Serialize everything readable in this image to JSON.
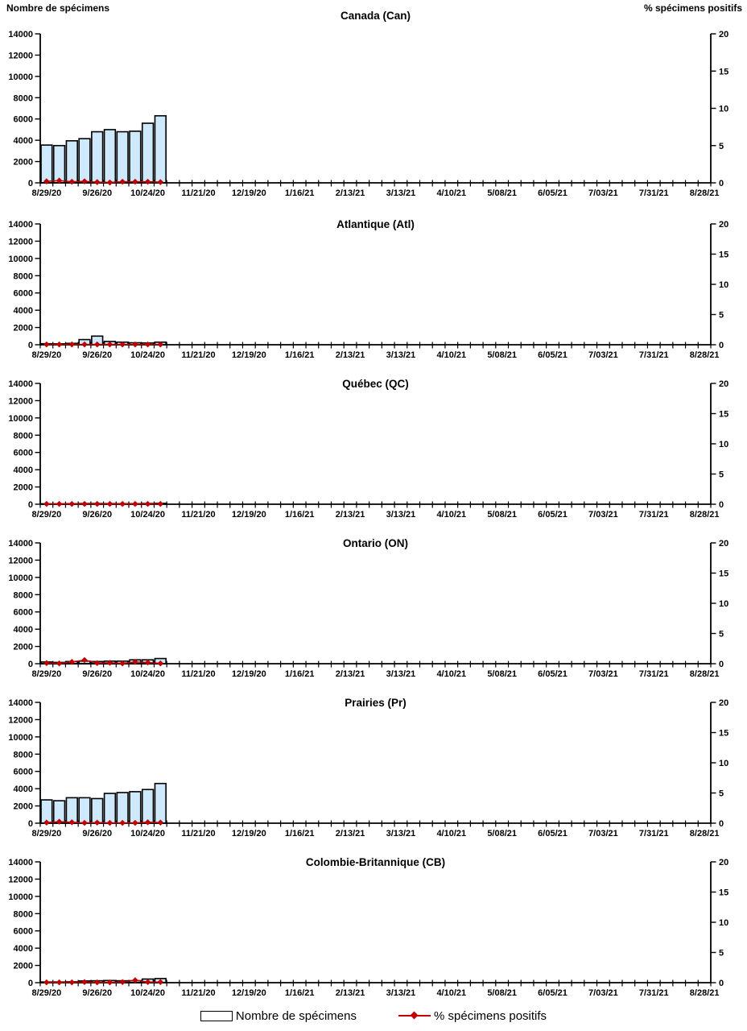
{
  "page": {
    "y_axis_title_left": "Nombre de spécimens",
    "y_axis_title_right": "% spécimens positifs"
  },
  "colors": {
    "bar_fill": "#cde9fb",
    "bar_stroke": "#000000",
    "line": "#c00000",
    "marker": "#c00000",
    "axis": "#000000"
  },
  "axes": {
    "y_left": {
      "label": "Nombre de spécimens",
      "min": 0,
      "max": 14000,
      "ticks": [
        0,
        2000,
        4000,
        6000,
        8000,
        10000,
        12000,
        14000
      ]
    },
    "y_right": {
      "label": "% spécimens positifs",
      "min": 0,
      "max": 20,
      "ticks": [
        0,
        5,
        10,
        15,
        20
      ]
    },
    "weeks_total": 53,
    "label_interval_weeks": 4,
    "x_tick_labels": [
      "8/29/20",
      "9/26/20",
      "10/24/20",
      "11/21/20",
      "12/19/20",
      "1/16/21",
      "2/13/21",
      "3/13/21",
      "4/10/21",
      "5/08/21",
      "6/05/21",
      "7/03/21",
      "7/31/21",
      "8/28/21"
    ]
  },
  "legend": {
    "bars_label": "Nombre de spécimens",
    "line_label": "% spécimens positifs"
  },
  "chart_data": [
    {
      "type": "bar",
      "title": "Canada (Can)",
      "x": [
        "8/29/20",
        "9/05/20",
        "9/12/20",
        "9/19/20",
        "9/26/20",
        "10/03/20",
        "10/10/20",
        "10/17/20",
        "10/24/20",
        "10/31/20"
      ],
      "series": [
        {
          "name": "Nombre de spécimens",
          "type": "bar",
          "axis": "left",
          "values": [
            3550,
            3500,
            3950,
            4150,
            4800,
            5000,
            4800,
            4850,
            5600,
            6300
          ]
        },
        {
          "name": "% spécimens positifs",
          "type": "line",
          "axis": "right",
          "values": [
            0.2,
            0.3,
            0.15,
            0.2,
            0.1,
            0.05,
            0.15,
            0.15,
            0.15,
            0.1
          ]
        }
      ],
      "ylim_left": [
        0,
        14000
      ],
      "ylim_right": [
        0,
        20
      ]
    },
    {
      "type": "bar",
      "title": "Atlantique (Atl)",
      "x": [
        "8/29/20",
        "9/05/20",
        "9/12/20",
        "9/19/20",
        "9/26/20",
        "10/03/20",
        "10/10/20",
        "10/17/20",
        "10/24/20",
        "10/31/20"
      ],
      "series": [
        {
          "name": "Nombre de spécimens",
          "type": "bar",
          "axis": "left",
          "values": [
            120,
            110,
            160,
            600,
            1000,
            380,
            300,
            230,
            200,
            300
          ]
        },
        {
          "name": "% spécimens positifs",
          "type": "line",
          "axis": "right",
          "values": [
            0.05,
            0.05,
            0.05,
            0.05,
            0.05,
            0.05,
            0.05,
            0.05,
            0.05,
            0.05
          ]
        }
      ],
      "ylim_left": [
        0,
        14000
      ],
      "ylim_right": [
        0,
        20
      ]
    },
    {
      "type": "bar",
      "title": "Québec (QC)",
      "x": [
        "8/29/20",
        "9/05/20",
        "9/12/20",
        "9/19/20",
        "9/26/20",
        "10/03/20",
        "10/10/20",
        "10/17/20",
        "10/24/20",
        "10/31/20"
      ],
      "series": [
        {
          "name": "Nombre de spécimens",
          "type": "bar",
          "axis": "left",
          "values": [
            50,
            50,
            60,
            80,
            80,
            70,
            60,
            60,
            80,
            100
          ]
        },
        {
          "name": "% spécimens positifs",
          "type": "line",
          "axis": "right",
          "values": [
            0.05,
            0.05,
            0.05,
            0.05,
            0.05,
            0.05,
            0.05,
            0.05,
            0.05,
            0.05
          ]
        }
      ],
      "ylim_left": [
        0,
        14000
      ],
      "ylim_right": [
        0,
        20
      ]
    },
    {
      "type": "bar",
      "title": "Ontario (ON)",
      "x": [
        "8/29/20",
        "9/05/20",
        "9/12/20",
        "9/19/20",
        "9/26/20",
        "10/03/20",
        "10/10/20",
        "10/17/20",
        "10/24/20",
        "10/31/20"
      ],
      "series": [
        {
          "name": "Nombre de spécimens",
          "type": "bar",
          "axis": "left",
          "values": [
            200,
            150,
            250,
            300,
            250,
            300,
            300,
            450,
            450,
            600
          ]
        },
        {
          "name": "% spécimens positifs",
          "type": "line",
          "axis": "right",
          "values": [
            0.1,
            0.05,
            0.3,
            0.6,
            0.1,
            0.15,
            0.05,
            0.3,
            0.2,
            0.05
          ]
        }
      ],
      "ylim_left": [
        0,
        14000
      ],
      "ylim_right": [
        0,
        20
      ]
    },
    {
      "type": "bar",
      "title": "Prairies (Pr)",
      "x": [
        "8/29/20",
        "9/05/20",
        "9/12/20",
        "9/19/20",
        "9/26/20",
        "10/03/20",
        "10/10/20",
        "10/17/20",
        "10/24/20",
        "10/31/20"
      ],
      "series": [
        {
          "name": "Nombre de spécimens",
          "type": "bar",
          "axis": "left",
          "values": [
            2700,
            2600,
            2950,
            2950,
            2850,
            3450,
            3550,
            3650,
            3900,
            4600
          ]
        },
        {
          "name": "% spécimens positifs",
          "type": "line",
          "axis": "right",
          "values": [
            0.1,
            0.25,
            0.15,
            0.05,
            0.1,
            0.05,
            0.05,
            0.05,
            0.15,
            0.1
          ]
        }
      ],
      "ylim_left": [
        0,
        14000
      ],
      "ylim_right": [
        0,
        20
      ]
    },
    {
      "type": "bar",
      "title": "Colombie-Britannique (CB)",
      "x": [
        "8/29/20",
        "9/05/20",
        "9/12/20",
        "9/19/20",
        "9/26/20",
        "10/03/20",
        "10/10/20",
        "10/17/20",
        "10/24/20",
        "10/31/20"
      ],
      "series": [
        {
          "name": "Nombre de spécimens",
          "type": "bar",
          "axis": "left",
          "values": [
            80,
            80,
            100,
            200,
            220,
            250,
            220,
            230,
            420,
            480
          ]
        },
        {
          "name": "% spécimens positifs",
          "type": "line",
          "axis": "right",
          "values": [
            0.05,
            0.05,
            0.05,
            0.1,
            0.05,
            0.05,
            0.1,
            0.4,
            0.1,
            0.1
          ]
        }
      ],
      "ylim_left": [
        0,
        14000
      ],
      "ylim_right": [
        0,
        20
      ]
    }
  ]
}
